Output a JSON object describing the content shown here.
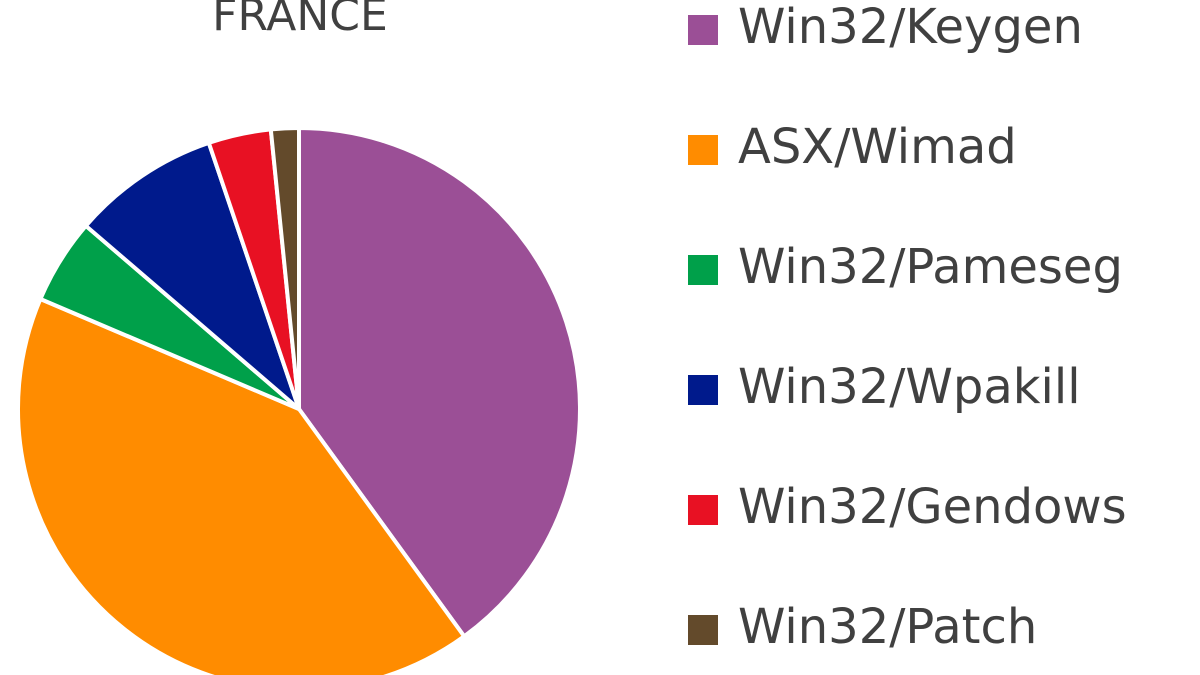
{
  "chart_data": {
    "type": "pie",
    "title": "FRANCE",
    "categories": [
      "Win32/Keygen",
      "ASX/Wimad",
      "Win32/Pameseg",
      "Win32/Wpakill",
      "Win32/Gendows",
      "Win32/Patch"
    ],
    "values": [
      40,
      41.4,
      4.9,
      8.5,
      3.6,
      1.6
    ],
    "colors": [
      "#9b4f96",
      "#ff8c00",
      "#00a04a",
      "#001a8c",
      "#e81123",
      "#634a2b"
    ],
    "legend": "right"
  }
}
